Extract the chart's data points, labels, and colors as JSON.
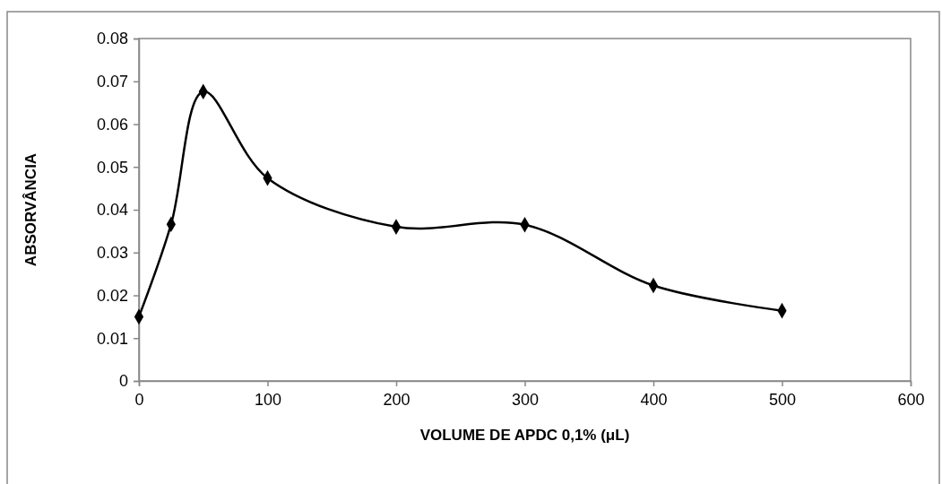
{
  "chart_data": {
    "type": "line",
    "xlabel": "VOLUME DE APDC 0,1% (μL)",
    "ylabel": "ABSORVÂNCIA",
    "x": [
      0,
      25,
      50,
      100,
      200,
      300,
      400,
      500
    ],
    "series": [
      {
        "color": "#000000",
        "values": [
          0.015,
          0.0366,
          0.0676,
          0.0474,
          0.036,
          0.0365,
          0.0223,
          0.0164
        ]
      }
    ],
    "xlim": [
      0,
      600
    ],
    "xticks": [
      0,
      100,
      200,
      300,
      400,
      500,
      600
    ],
    "ylim": [
      0,
      0.08
    ],
    "yticks": [
      0,
      0.01,
      0.02,
      0.03,
      0.04,
      0.05,
      0.06,
      0.07,
      0.08
    ],
    "grid": false,
    "marker": "diamond",
    "line_style": "solid"
  }
}
